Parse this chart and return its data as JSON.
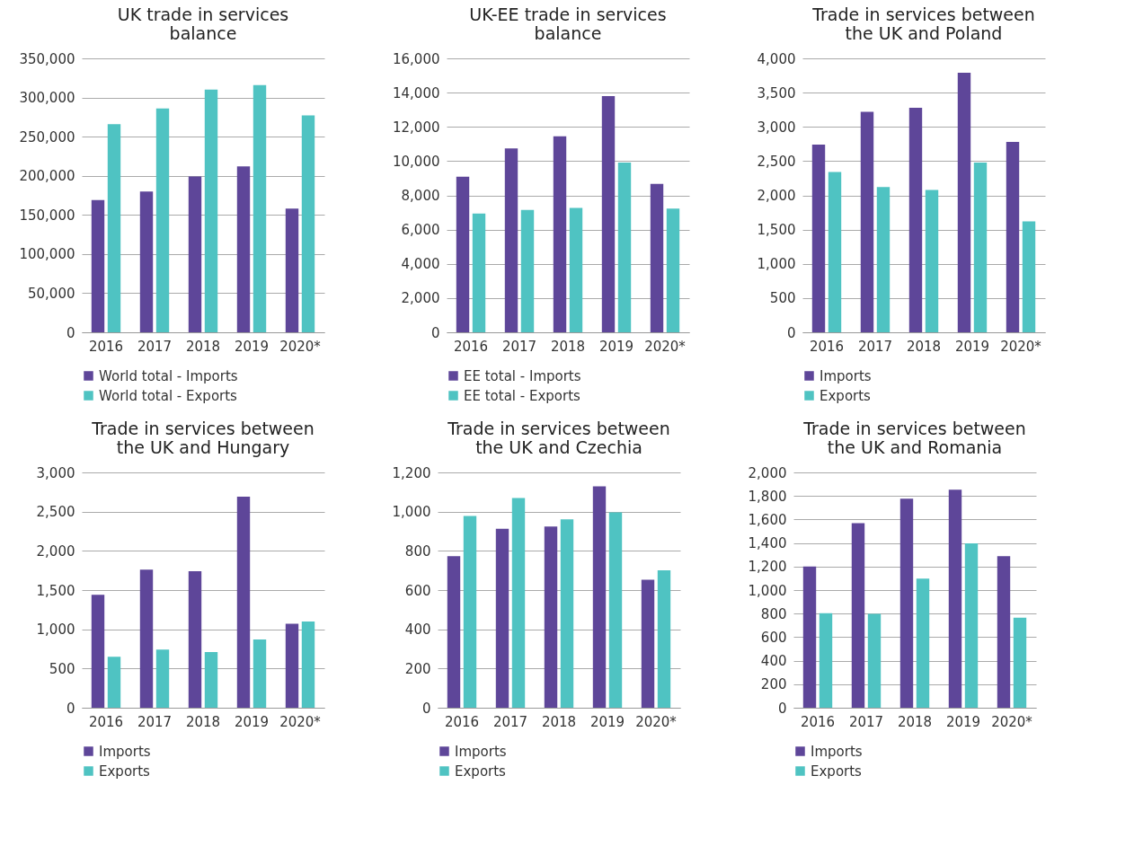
{
  "chart_data": [
    {
      "type": "bar",
      "title": "UK trade in services balance",
      "categories": [
        "2016",
        "2017",
        "2018",
        "2019",
        "2020*"
      ],
      "ylim": [
        0,
        350000
      ],
      "yticks": [
        0,
        {
          "value": 50000,
          "label": "50,000"
        },
        {
          "value": 100000,
          "label": "100,000"
        },
        {
          "value": 150000,
          "label": "150,000"
        },
        {
          "value": 200000,
          "label": "200,000"
        },
        {
          "value": 250000,
          "label": "250,000"
        },
        {
          "value": 300000,
          "label": "300,000"
        },
        {
          "value": 350000,
          "label": "350,000"
        }
      ],
      "grid": "y",
      "legend": "bottom",
      "series": [
        {
          "name": "World total - Imports",
          "color": "#5e4699",
          "values": [
            169000,
            180000,
            199000,
            212000,
            158000
          ]
        },
        {
          "name": "World total - Exports",
          "color": "#4fc3c2",
          "values": [
            266000,
            286000,
            310000,
            316000,
            277000
          ]
        }
      ]
    },
    {
      "type": "bar",
      "title": "UK-EE trade in services balance",
      "categories": [
        "2016",
        "2017",
        "2018",
        "2019",
        "2020*"
      ],
      "ylim": [
        0,
        16000
      ],
      "yticks": [
        0,
        {
          "value": 2000,
          "label": "2,000"
        },
        {
          "value": 4000,
          "label": "4,000"
        },
        {
          "value": 6000,
          "label": "6,000"
        },
        {
          "value": 8000,
          "label": "8,000"
        },
        {
          "value": 10000,
          "label": "10,000"
        },
        {
          "value": 12000,
          "label": "12,000"
        },
        {
          "value": 14000,
          "label": "14,000"
        },
        {
          "value": 16000,
          "label": "16,000"
        }
      ],
      "grid": "y",
      "legend": "bottom",
      "series": [
        {
          "name": "EE total - Imports",
          "color": "#5e4699",
          "values": [
            9090,
            10740,
            11450,
            13800,
            8670
          ]
        },
        {
          "name": "EE total - Exports",
          "color": "#4fc3c2",
          "values": [
            6940,
            7150,
            7270,
            9920,
            7230
          ]
        }
      ]
    },
    {
      "type": "bar",
      "title": "Trade in services between the UK and Poland",
      "categories": [
        "2016",
        "2017",
        "2018",
        "2019",
        "2020*"
      ],
      "ylim": [
        0,
        4000
      ],
      "yticks": [
        0,
        500,
        {
          "value": 1000,
          "label": "1,000"
        },
        {
          "value": 1500,
          "label": "1,500"
        },
        {
          "value": 2000,
          "label": "2,000"
        },
        {
          "value": 2500,
          "label": "2,500"
        },
        {
          "value": 3000,
          "label": "3,000"
        },
        {
          "value": 3500,
          "label": "3,500"
        },
        {
          "value": 4000,
          "label": "4,000"
        }
      ],
      "grid": "y",
      "legend": "bottom",
      "series": [
        {
          "name": "Imports",
          "color": "#5e4699",
          "values": [
            2740,
            3220,
            3280,
            3790,
            2780
          ]
        },
        {
          "name": "Exports",
          "color": "#4fc3c2",
          "values": [
            2340,
            2120,
            2080,
            2480,
            1620
          ]
        }
      ]
    },
    {
      "type": "bar",
      "title": "Trade in services between the UK and Hungary",
      "categories": [
        "2016",
        "2017",
        "2018",
        "2019",
        "2020*"
      ],
      "ylim": [
        0,
        3000
      ],
      "yticks": [
        0,
        500,
        {
          "value": 1000,
          "label": "1,000"
        },
        {
          "value": 1500,
          "label": "1,500"
        },
        {
          "value": 2000,
          "label": "2,000"
        },
        {
          "value": 2500,
          "label": "2,500"
        },
        {
          "value": 3000,
          "label": "3,000"
        }
      ],
      "grid": "y",
      "legend": "bottom",
      "series": [
        {
          "name": "Imports",
          "color": "#5e4699",
          "values": [
            1440,
            1760,
            1740,
            2690,
            1070
          ]
        },
        {
          "name": "Exports",
          "color": "#4fc3c2",
          "values": [
            650,
            740,
            710,
            870,
            1100
          ]
        }
      ]
    },
    {
      "type": "bar",
      "title": "Trade in services between the UK and Czechia",
      "categories": [
        "2016",
        "2017",
        "2018",
        "2019",
        "2020*"
      ],
      "ylim": [
        0,
        1200
      ],
      "yticks": [
        0,
        200,
        400,
        600,
        800,
        {
          "value": 1000,
          "label": "1,000"
        },
        {
          "value": 1200,
          "label": "1,200"
        }
      ],
      "grid": "y",
      "legend": "bottom",
      "series": [
        {
          "name": "Imports",
          "color": "#5e4699",
          "values": [
            773,
            913,
            924,
            1129,
            653
          ]
        },
        {
          "name": "Exports",
          "color": "#4fc3c2",
          "values": [
            978,
            1069,
            961,
            996,
            701
          ]
        }
      ]
    },
    {
      "type": "bar",
      "title": "Trade in services between the UK and Romania",
      "categories": [
        "2016",
        "2017",
        "2018",
        "2019",
        "2020*"
      ],
      "ylim": [
        0,
        2000
      ],
      "yticks": [
        0,
        200,
        400,
        600,
        800,
        {
          "value": 1000,
          "label": "1,000"
        },
        {
          "value": 1200,
          "label": "1,200"
        },
        {
          "value": 1400,
          "label": "1,400"
        },
        {
          "value": 1600,
          "label": "1,600"
        },
        {
          "value": 1800,
          "label": "1,800"
        },
        {
          "value": 2000,
          "label": "2,000"
        }
      ],
      "grid": "y",
      "legend": "bottom",
      "series": [
        {
          "name": "Imports",
          "color": "#5e4699",
          "values": [
            1200,
            1568,
            1776,
            1854,
            1289
          ]
        },
        {
          "name": "Exports",
          "color": "#4fc3c2",
          "values": [
            804,
            797,
            1098,
            1396,
            766
          ]
        }
      ]
    }
  ]
}
